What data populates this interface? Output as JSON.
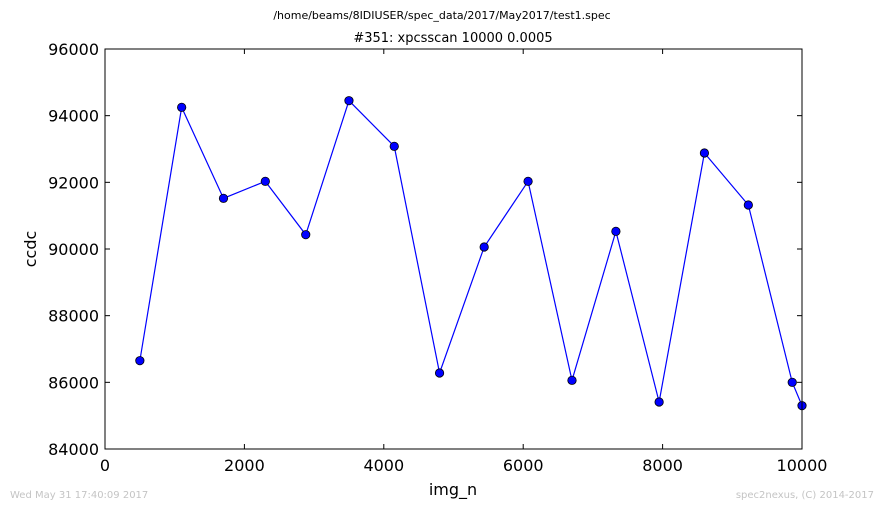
{
  "header": {
    "file_path": "/home/beams/8IDIUSER/spec_data/2017/May2017/test1.spec"
  },
  "footer": {
    "timestamp": "Wed May 31 17:40:09 2017",
    "credit": "spec2nexus, (C) 2014-2017"
  },
  "chart_data": {
    "type": "line",
    "title": "#351: xpcsscan 10000 0.0005",
    "xlabel": "img_n",
    "ylabel": "ccdc",
    "xlim": [
      0,
      10000
    ],
    "ylim": [
      84000,
      96000
    ],
    "xticks": [
      "0",
      "2000",
      "4000",
      "6000",
      "8000",
      "10000"
    ],
    "xtick_values": [
      0,
      2000,
      4000,
      6000,
      8000,
      10000
    ],
    "yticks": [
      "84000",
      "86000",
      "88000",
      "90000",
      "92000",
      "94000",
      "96000"
    ],
    "ytick_values": [
      84000,
      86000,
      88000,
      90000,
      92000,
      94000,
      96000
    ],
    "grid": false,
    "series": [
      {
        "color": "#0000ff",
        "marker": "circle",
        "x": [
          500,
          1100,
          1700,
          2300,
          2880,
          3500,
          4150,
          4800,
          5440,
          6070,
          6700,
          7330,
          7950,
          8600,
          9230,
          9860,
          10000
        ],
        "y": [
          86650,
          94250,
          91520,
          92030,
          90430,
          94450,
          93080,
          86280,
          90060,
          92030,
          86060,
          90530,
          85410,
          92880,
          91320,
          86000,
          85300
        ]
      }
    ]
  }
}
